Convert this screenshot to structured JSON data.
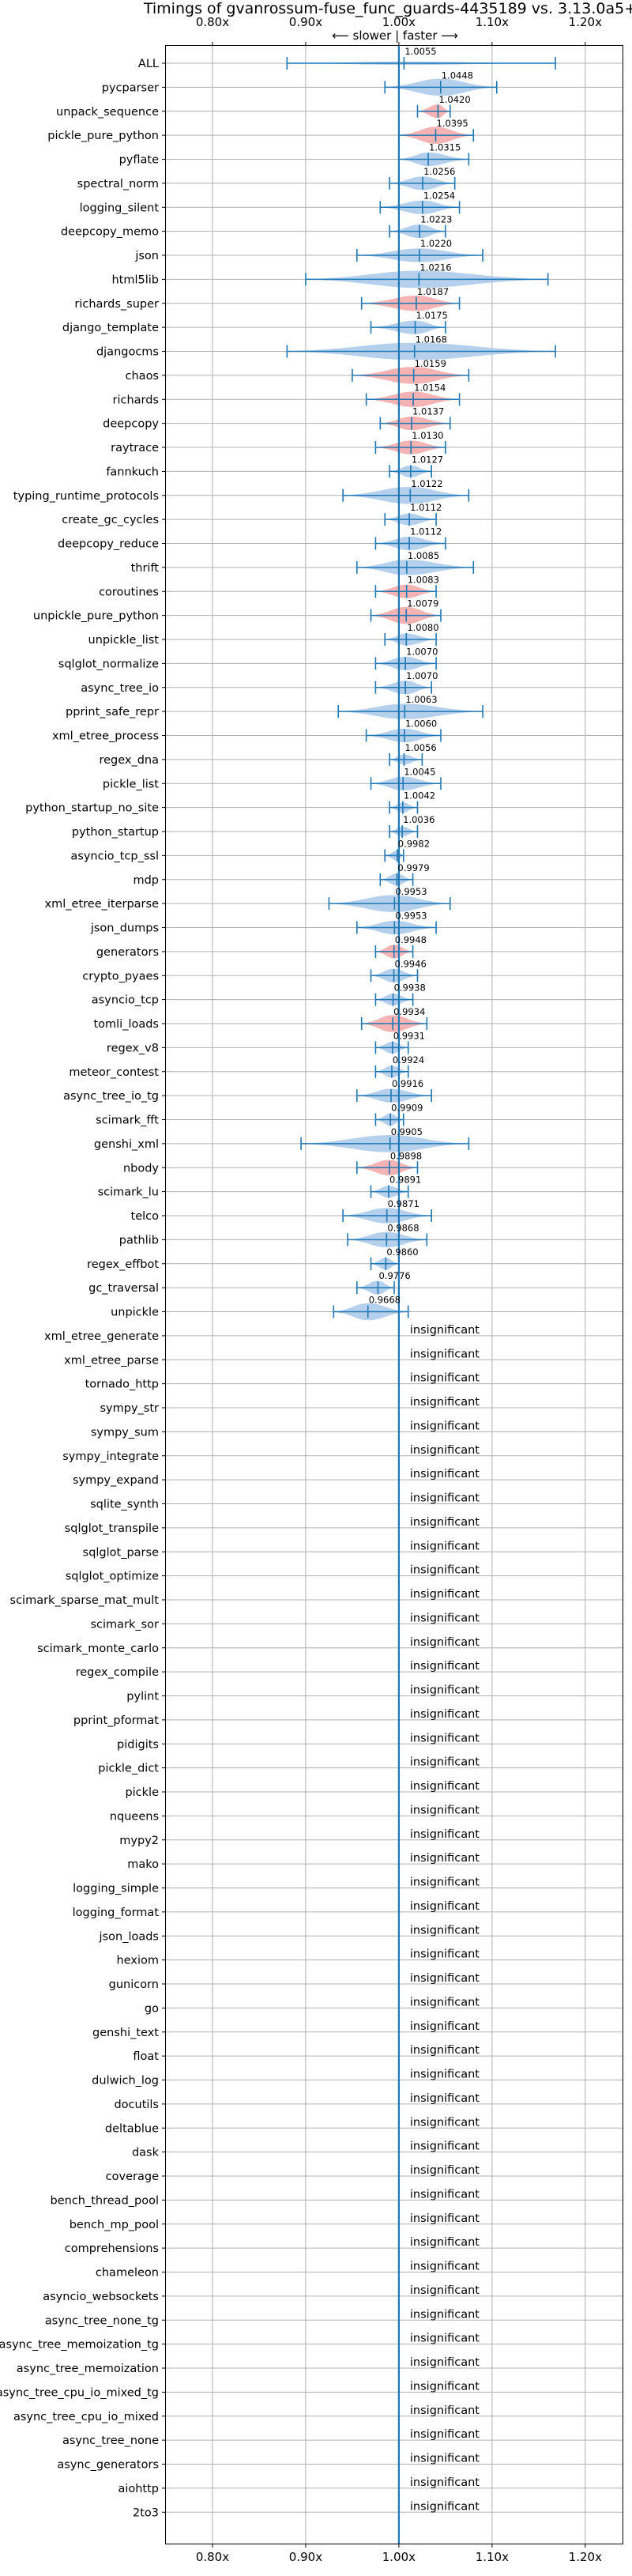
{
  "chart_data": {
    "type": "violin",
    "title": "Timings of gvanrossum-fuse_func_guards-4435189 vs. 3.13.0a5+",
    "direction_label": "⟵ slower  |  faster ⟶",
    "xlim": [
      0.75,
      1.24
    ],
    "x_ticks": [
      0.8,
      0.9,
      1.0,
      1.1,
      1.2
    ],
    "x_tick_labels": [
      "0.80x",
      "0.90x",
      "1.00x",
      "1.10x",
      "1.20x"
    ],
    "reference_line": 1.0,
    "grid": true,
    "colors": {
      "faster": "#a8c8ea",
      "slower": "#f4a6a6",
      "line": "#1f77b4",
      "grid": "#b0b0b0"
    },
    "benchmarks": [
      {
        "name": "ALL",
        "value": 1.0055,
        "label": "1.0055",
        "lo": 0.88,
        "hi": 1.168,
        "width": 0.015,
        "color": "blue"
      },
      {
        "name": "pycparser",
        "value": 1.0448,
        "label": "1.0448",
        "lo": 0.985,
        "hi": 1.105,
        "width": 0.8,
        "color": "blue"
      },
      {
        "name": "unpack_sequence",
        "value": 1.042,
        "label": "1.0420",
        "lo": 1.02,
        "hi": 1.055,
        "width": 0.6,
        "color": "red"
      },
      {
        "name": "pickle_pure_python",
        "value": 1.0395,
        "label": "1.0395",
        "lo": 1.0,
        "hi": 1.08,
        "width": 0.8,
        "color": "red"
      },
      {
        "name": "pyflate",
        "value": 1.0315,
        "label": "1.0315",
        "lo": 1.0,
        "hi": 1.075,
        "width": 0.6,
        "color": "blue"
      },
      {
        "name": "spectral_norm",
        "value": 1.0256,
        "label": "1.0256",
        "lo": 0.99,
        "hi": 1.06,
        "width": 0.6,
        "color": "blue"
      },
      {
        "name": "logging_silent",
        "value": 1.0254,
        "label": "1.0254",
        "lo": 0.98,
        "hi": 1.065,
        "width": 0.6,
        "color": "blue"
      },
      {
        "name": "deepcopy_memo",
        "value": 1.0223,
        "label": "1.0223",
        "lo": 0.99,
        "hi": 1.05,
        "width": 0.6,
        "color": "blue"
      },
      {
        "name": "json",
        "value": 1.022,
        "label": "1.0220",
        "lo": 0.955,
        "hi": 1.09,
        "width": 0.6,
        "color": "blue"
      },
      {
        "name": "html5lib",
        "value": 1.0216,
        "label": "1.0216",
        "lo": 0.9,
        "hi": 1.16,
        "width": 0.8,
        "color": "blue"
      },
      {
        "name": "richards_super",
        "value": 1.0187,
        "label": "1.0187",
        "lo": 0.96,
        "hi": 1.065,
        "width": 0.7,
        "color": "red"
      },
      {
        "name": "django_template",
        "value": 1.0175,
        "label": "1.0175",
        "lo": 0.97,
        "hi": 1.05,
        "width": 0.6,
        "color": "blue"
      },
      {
        "name": "djangocms",
        "value": 1.0168,
        "label": "1.0168",
        "lo": 0.88,
        "hi": 1.168,
        "width": 0.8,
        "color": "blue"
      },
      {
        "name": "chaos",
        "value": 1.0159,
        "label": "1.0159",
        "lo": 0.95,
        "hi": 1.075,
        "width": 0.8,
        "color": "red"
      },
      {
        "name": "richards",
        "value": 1.0154,
        "label": "1.0154",
        "lo": 0.965,
        "hi": 1.065,
        "width": 0.7,
        "color": "red"
      },
      {
        "name": "deepcopy",
        "value": 1.0137,
        "label": "1.0137",
        "lo": 0.98,
        "hi": 1.055,
        "width": 0.6,
        "color": "red"
      },
      {
        "name": "raytrace",
        "value": 1.013,
        "label": "1.0130",
        "lo": 0.975,
        "hi": 1.05,
        "width": 0.6,
        "color": "red"
      },
      {
        "name": "fannkuch",
        "value": 1.0127,
        "label": "1.0127",
        "lo": 0.99,
        "hi": 1.035,
        "width": 0.5,
        "color": "blue"
      },
      {
        "name": "typing_runtime_protocols",
        "value": 1.0122,
        "label": "1.0122",
        "lo": 0.94,
        "hi": 1.075,
        "width": 0.8,
        "color": "blue"
      },
      {
        "name": "create_gc_cycles",
        "value": 1.0112,
        "label": "1.0112",
        "lo": 0.985,
        "hi": 1.04,
        "width": 0.5,
        "color": "blue"
      },
      {
        "name": "deepcopy_reduce",
        "value": 1.0112,
        "label": "1.0112",
        "lo": 0.975,
        "hi": 1.05,
        "width": 0.6,
        "color": "blue"
      },
      {
        "name": "thrift",
        "value": 1.0085,
        "label": "1.0085",
        "lo": 0.955,
        "hi": 1.08,
        "width": 0.7,
        "color": "blue"
      },
      {
        "name": "coroutines",
        "value": 1.0083,
        "label": "1.0083",
        "lo": 0.975,
        "hi": 1.04,
        "width": 0.6,
        "color": "red"
      },
      {
        "name": "unpickle_pure_python",
        "value": 1.0079,
        "label": "1.0079",
        "lo": 0.97,
        "hi": 1.045,
        "width": 0.8,
        "color": "red"
      },
      {
        "name": "unpickle_list",
        "value": 1.008,
        "label": "1.0080",
        "lo": 0.985,
        "hi": 1.04,
        "width": 0.5,
        "color": "blue"
      },
      {
        "name": "sqlglot_normalize",
        "value": 1.007,
        "label": "1.0070",
        "lo": 0.975,
        "hi": 1.04,
        "width": 0.6,
        "color": "blue"
      },
      {
        "name": "async_tree_io",
        "value": 1.007,
        "label": "1.0070",
        "lo": 0.975,
        "hi": 1.035,
        "width": 0.6,
        "color": "blue"
      },
      {
        "name": "pprint_safe_repr",
        "value": 1.0063,
        "label": "1.0063",
        "lo": 0.935,
        "hi": 1.09,
        "width": 0.7,
        "color": "blue"
      },
      {
        "name": "xml_etree_process",
        "value": 1.006,
        "label": "1.0060",
        "lo": 0.965,
        "hi": 1.045,
        "width": 0.6,
        "color": "blue"
      },
      {
        "name": "regex_dna",
        "value": 1.0056,
        "label": "1.0056",
        "lo": 0.99,
        "hi": 1.025,
        "width": 0.4,
        "color": "blue"
      },
      {
        "name": "pickle_list",
        "value": 1.0045,
        "label": "1.0045",
        "lo": 0.97,
        "hi": 1.045,
        "width": 0.6,
        "color": "blue"
      },
      {
        "name": "python_startup_no_site",
        "value": 1.0042,
        "label": "1.0042",
        "lo": 0.99,
        "hi": 1.02,
        "width": 0.4,
        "color": "blue"
      },
      {
        "name": "python_startup",
        "value": 1.0036,
        "label": "1.0036",
        "lo": 0.99,
        "hi": 1.02,
        "width": 0.4,
        "color": "blue"
      },
      {
        "name": "asyncio_tcp_ssl",
        "value": 0.9982,
        "label": "0.9982",
        "lo": 0.985,
        "hi": 1.005,
        "width": 0.4,
        "color": "blue"
      },
      {
        "name": "mdp",
        "value": 0.9979,
        "label": "0.9979",
        "lo": 0.98,
        "hi": 1.015,
        "width": 0.5,
        "color": "blue"
      },
      {
        "name": "xml_etree_iterparse",
        "value": 0.9953,
        "label": "0.9953",
        "lo": 0.925,
        "hi": 1.055,
        "width": 0.8,
        "color": "blue"
      },
      {
        "name": "json_dumps",
        "value": 0.9953,
        "label": "0.9953",
        "lo": 0.955,
        "hi": 1.04,
        "width": 0.6,
        "color": "blue"
      },
      {
        "name": "generators",
        "value": 0.9948,
        "label": "0.9948",
        "lo": 0.975,
        "hi": 1.015,
        "width": 0.6,
        "color": "red"
      },
      {
        "name": "crypto_pyaes",
        "value": 0.9946,
        "label": "0.9946",
        "lo": 0.97,
        "hi": 1.02,
        "width": 0.6,
        "color": "blue"
      },
      {
        "name": "asyncio_tcp",
        "value": 0.9938,
        "label": "0.9938",
        "lo": 0.975,
        "hi": 1.015,
        "width": 0.5,
        "color": "blue"
      },
      {
        "name": "tomli_loads",
        "value": 0.9934,
        "label": "0.9934",
        "lo": 0.96,
        "hi": 1.03,
        "width": 0.8,
        "color": "red"
      },
      {
        "name": "regex_v8",
        "value": 0.9931,
        "label": "0.9931",
        "lo": 0.975,
        "hi": 1.01,
        "width": 0.5,
        "color": "blue"
      },
      {
        "name": "meteor_contest",
        "value": 0.9924,
        "label": "0.9924",
        "lo": 0.975,
        "hi": 1.01,
        "width": 0.5,
        "color": "blue"
      },
      {
        "name": "async_tree_io_tg",
        "value": 0.9916,
        "label": "0.9916",
        "lo": 0.955,
        "hi": 1.035,
        "width": 0.6,
        "color": "blue"
      },
      {
        "name": "scimark_fft",
        "value": 0.9909,
        "label": "0.9909",
        "lo": 0.975,
        "hi": 1.005,
        "width": 0.5,
        "color": "blue"
      },
      {
        "name": "genshi_xml",
        "value": 0.9905,
        "label": "0.9905",
        "lo": 0.895,
        "hi": 1.075,
        "width": 0.8,
        "color": "blue"
      },
      {
        "name": "nbody",
        "value": 0.9898,
        "label": "0.9898",
        "lo": 0.955,
        "hi": 1.02,
        "width": 0.7,
        "color": "red"
      },
      {
        "name": "scimark_lu",
        "value": 0.9891,
        "label": "0.9891",
        "lo": 0.97,
        "hi": 1.01,
        "width": 0.5,
        "color": "blue"
      },
      {
        "name": "telco",
        "value": 0.9871,
        "label": "0.9871",
        "lo": 0.94,
        "hi": 1.035,
        "width": 0.7,
        "color": "blue"
      },
      {
        "name": "pathlib",
        "value": 0.9868,
        "label": "0.9868",
        "lo": 0.945,
        "hi": 1.03,
        "width": 0.7,
        "color": "blue"
      },
      {
        "name": "regex_effbot",
        "value": 0.986,
        "label": "0.9860",
        "lo": 0.97,
        "hi": 1.0,
        "width": 0.5,
        "color": "blue"
      },
      {
        "name": "gc_traversal",
        "value": 0.9776,
        "label": "0.9776",
        "lo": 0.955,
        "hi": 0.995,
        "width": 0.6,
        "color": "blue"
      },
      {
        "name": "unpickle",
        "value": 0.9668,
        "label": "0.9668",
        "lo": 0.93,
        "hi": 1.01,
        "width": 0.8,
        "color": "blue"
      },
      {
        "name": "xml_etree_generate",
        "label": "insignificant"
      },
      {
        "name": "xml_etree_parse",
        "label": "insignificant"
      },
      {
        "name": "tornado_http",
        "label": "insignificant"
      },
      {
        "name": "sympy_str",
        "label": "insignificant"
      },
      {
        "name": "sympy_sum",
        "label": "insignificant"
      },
      {
        "name": "sympy_integrate",
        "label": "insignificant"
      },
      {
        "name": "sympy_expand",
        "label": "insignificant"
      },
      {
        "name": "sqlite_synth",
        "label": "insignificant"
      },
      {
        "name": "sqlglot_transpile",
        "label": "insignificant"
      },
      {
        "name": "sqlglot_parse",
        "label": "insignificant"
      },
      {
        "name": "sqlglot_optimize",
        "label": "insignificant"
      },
      {
        "name": "scimark_sparse_mat_mult",
        "label": "insignificant"
      },
      {
        "name": "scimark_sor",
        "label": "insignificant"
      },
      {
        "name": "scimark_monte_carlo",
        "label": "insignificant"
      },
      {
        "name": "regex_compile",
        "label": "insignificant"
      },
      {
        "name": "pylint",
        "label": "insignificant"
      },
      {
        "name": "pprint_pformat",
        "label": "insignificant"
      },
      {
        "name": "pidigits",
        "label": "insignificant"
      },
      {
        "name": "pickle_dict",
        "label": "insignificant"
      },
      {
        "name": "pickle",
        "label": "insignificant"
      },
      {
        "name": "nqueens",
        "label": "insignificant"
      },
      {
        "name": "mypy2",
        "label": "insignificant"
      },
      {
        "name": "mako",
        "label": "insignificant"
      },
      {
        "name": "logging_simple",
        "label": "insignificant"
      },
      {
        "name": "logging_format",
        "label": "insignificant"
      },
      {
        "name": "json_loads",
        "label": "insignificant"
      },
      {
        "name": "hexiom",
        "label": "insignificant"
      },
      {
        "name": "gunicorn",
        "label": "insignificant"
      },
      {
        "name": "go",
        "label": "insignificant"
      },
      {
        "name": "genshi_text",
        "label": "insignificant"
      },
      {
        "name": "float",
        "label": "insignificant"
      },
      {
        "name": "dulwich_log",
        "label": "insignificant"
      },
      {
        "name": "docutils",
        "label": "insignificant"
      },
      {
        "name": "deltablue",
        "label": "insignificant"
      },
      {
        "name": "dask",
        "label": "insignificant"
      },
      {
        "name": "coverage",
        "label": "insignificant"
      },
      {
        "name": "bench_thread_pool",
        "label": "insignificant"
      },
      {
        "name": "bench_mp_pool",
        "label": "insignificant"
      },
      {
        "name": "comprehensions",
        "label": "insignificant"
      },
      {
        "name": "chameleon",
        "label": "insignificant"
      },
      {
        "name": "asyncio_websockets",
        "label": "insignificant"
      },
      {
        "name": "async_tree_none_tg",
        "label": "insignificant"
      },
      {
        "name": "async_tree_memoization_tg",
        "label": "insignificant"
      },
      {
        "name": "async_tree_memoization",
        "label": "insignificant"
      },
      {
        "name": "async_tree_cpu_io_mixed_tg",
        "label": "insignificant"
      },
      {
        "name": "async_tree_cpu_io_mixed",
        "label": "insignificant"
      },
      {
        "name": "async_tree_none",
        "label": "insignificant"
      },
      {
        "name": "async_generators",
        "label": "insignificant"
      },
      {
        "name": "aiohttp",
        "label": "insignificant"
      },
      {
        "name": "2to3",
        "label": "insignificant"
      }
    ]
  }
}
